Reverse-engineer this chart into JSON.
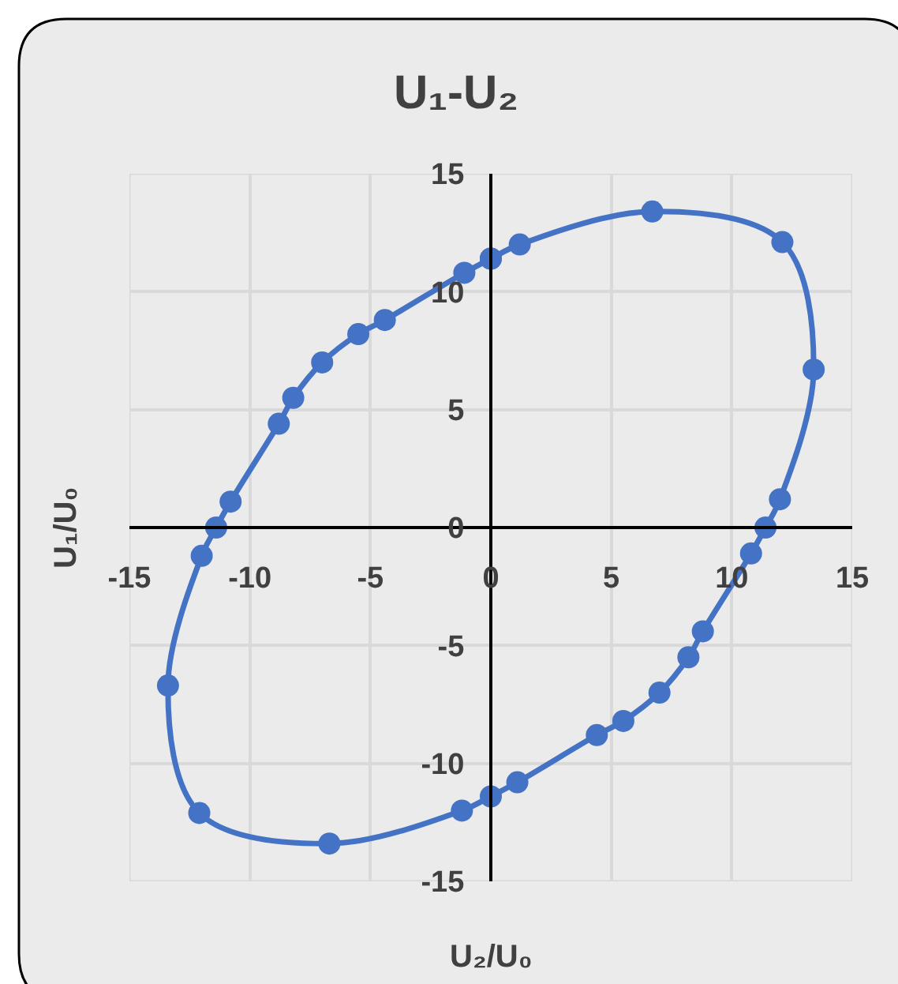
{
  "chart_data": {
    "type": "scatter",
    "title": "U₁-U₂",
    "xlabel": "U₂/U₀",
    "ylabel": "U₁/U₀",
    "x": [
      0,
      1.2,
      6.7,
      12.1,
      13.4,
      12.0,
      11.4,
      10.8,
      8.8,
      8.2,
      7.0,
      5.5,
      4.4,
      1.1,
      0,
      -1.2,
      -6.7,
      -12.1,
      -13.4,
      -12.0,
      -11.4,
      -10.8,
      -8.8,
      -8.2,
      -7.0,
      -5.5,
      -4.4,
      -1.1,
      0
    ],
    "series": [
      {
        "color": "#4472c4",
        "values": [
          11.4,
          12.0,
          13.4,
          12.1,
          6.7,
          1.2,
          0,
          -1.1,
          -4.4,
          -5.5,
          -7.0,
          -8.2,
          -8.8,
          -10.8,
          -11.4,
          -12.0,
          -13.4,
          -12.1,
          -6.7,
          -1.2,
          0,
          1.1,
          4.4,
          5.5,
          7.0,
          8.2,
          8.8,
          10.8,
          11.4
        ]
      }
    ],
    "xlim": [
      -15,
      15
    ],
    "ylim": [
      -15,
      15
    ],
    "xticks": [
      -15,
      -10,
      -5,
      0,
      5,
      10,
      15
    ],
    "yticks": [
      -15,
      -10,
      -5,
      0,
      5,
      10,
      15
    ],
    "grid": true,
    "marker": "circle",
    "line_style": "solid"
  }
}
